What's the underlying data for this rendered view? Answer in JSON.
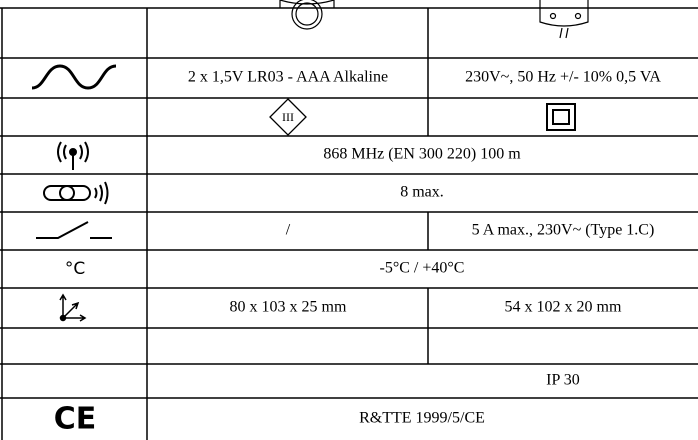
{
  "table": {
    "rows": [
      [
        "2 x 1,5V LR03 - AAA Alkaline",
        "230V~, 50 Hz +/- 10% 0,5 VA"
      ],
      [
        "III"
      ],
      [
        "868 MHz (EN 300 220) 100 m"
      ],
      [
        "8 max."
      ],
      [
        "/",
        "5 A max., 230V~ (Type 1.C)"
      ],
      [
        "°C",
        "-5°C / +40°C"
      ],
      [
        "80 x 103 x 25 mm",
        "54 x 102 x 20 mm"
      ],
      [
        "IP 30"
      ],
      [
        "CE",
        "R&TTE 1999/5/CE"
      ]
    ]
  }
}
